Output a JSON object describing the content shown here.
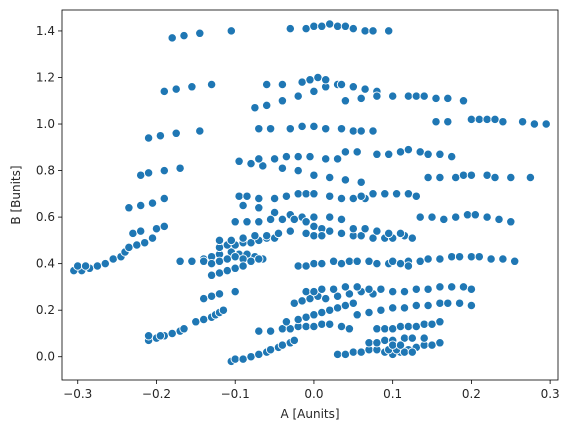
{
  "chart_data": {
    "type": "scatter",
    "xlabel": "A [Aunits]",
    "ylabel": "B [Bunits]",
    "xlim": [
      -0.32,
      0.31
    ],
    "ylim": [
      -0.1,
      1.49
    ],
    "xticks": [
      -0.3,
      -0.2,
      -0.1,
      0.0,
      0.1,
      0.2,
      0.3
    ],
    "xtick_labels": [
      "−0.3",
      "−0.2",
      "−0.1",
      "0.0",
      "0.1",
      "0.2",
      "0.3"
    ],
    "yticks": [
      0.0,
      0.2,
      0.4,
      0.6,
      0.8,
      1.0,
      1.2,
      1.4
    ],
    "ytick_labels": [
      "0.0",
      "0.2",
      "0.4",
      "0.6",
      "0.8",
      "1.0",
      "1.2",
      "1.4"
    ],
    "grid": false,
    "marker_color": "#1f77b4",
    "marker_edge_color": "#ffffff",
    "points": [
      [
        -0.18,
        1.37
      ],
      [
        -0.165,
        1.38
      ],
      [
        -0.145,
        1.39
      ],
      [
        -0.105,
        1.4
      ],
      [
        -0.03,
        1.41
      ],
      [
        -0.01,
        1.41
      ],
      [
        0.0,
        1.42
      ],
      [
        0.01,
        1.42
      ],
      [
        0.02,
        1.43
      ],
      [
        0.03,
        1.42
      ],
      [
        0.04,
        1.42
      ],
      [
        0.05,
        1.41
      ],
      [
        0.065,
        1.4
      ],
      [
        0.075,
        1.4
      ],
      [
        0.095,
        1.4
      ],
      [
        -0.19,
        1.14
      ],
      [
        -0.175,
        1.15
      ],
      [
        -0.155,
        1.16
      ],
      [
        -0.13,
        1.17
      ],
      [
        -0.075,
        1.07
      ],
      [
        -0.06,
        1.08
      ],
      [
        -0.04,
        1.1
      ],
      [
        -0.02,
        1.12
      ],
      [
        0.0,
        1.14
      ],
      [
        0.015,
        1.16
      ],
      [
        0.03,
        1.17
      ],
      [
        -0.06,
        1.17
      ],
      [
        -0.04,
        1.17
      ],
      [
        -0.015,
        1.18
      ],
      [
        -0.005,
        1.19
      ],
      [
        0.005,
        1.2
      ],
      [
        0.015,
        1.19
      ],
      [
        0.035,
        1.17
      ],
      [
        0.05,
        1.16
      ],
      [
        0.065,
        1.15
      ],
      [
        0.08,
        1.14
      ],
      [
        0.04,
        1.1
      ],
      [
        0.06,
        1.11
      ],
      [
        0.08,
        1.12
      ],
      [
        0.1,
        1.12
      ],
      [
        0.12,
        1.12
      ],
      [
        0.13,
        1.12
      ],
      [
        0.14,
        1.12
      ],
      [
        0.155,
        1.11
      ],
      [
        0.17,
        1.11
      ],
      [
        0.19,
        1.1
      ],
      [
        0.155,
        1.01
      ],
      [
        0.17,
        1.01
      ],
      [
        0.2,
        1.02
      ],
      [
        0.21,
        1.02
      ],
      [
        0.22,
        1.02
      ],
      [
        0.23,
        1.02
      ],
      [
        0.24,
        1.01
      ],
      [
        0.265,
        1.01
      ],
      [
        0.28,
        1.0
      ],
      [
        0.295,
        1.0
      ],
      [
        -0.21,
        0.94
      ],
      [
        -0.195,
        0.95
      ],
      [
        -0.175,
        0.96
      ],
      [
        -0.145,
        0.97
      ],
      [
        -0.07,
        0.98
      ],
      [
        -0.055,
        0.98
      ],
      [
        -0.03,
        0.98
      ],
      [
        -0.015,
        0.99
      ],
      [
        0.0,
        0.99
      ],
      [
        0.015,
        0.98
      ],
      [
        0.035,
        0.98
      ],
      [
        0.05,
        0.97
      ],
      [
        0.06,
        0.97
      ],
      [
        0.075,
        0.97
      ],
      [
        -0.22,
        0.78
      ],
      [
        -0.21,
        0.79
      ],
      [
        -0.19,
        0.8
      ],
      [
        -0.17,
        0.81
      ],
      [
        -0.095,
        0.84
      ],
      [
        -0.08,
        0.83
      ],
      [
        -0.065,
        0.82
      ],
      [
        -0.04,
        0.81
      ],
      [
        -0.02,
        0.8
      ],
      [
        0.0,
        0.78
      ],
      [
        0.02,
        0.77
      ],
      [
        0.04,
        0.76
      ],
      [
        0.06,
        0.75
      ],
      [
        -0.07,
        0.85
      ],
      [
        -0.05,
        0.85
      ],
      [
        -0.035,
        0.86
      ],
      [
        -0.02,
        0.86
      ],
      [
        -0.005,
        0.86
      ],
      [
        0.015,
        0.85
      ],
      [
        0.03,
        0.85
      ],
      [
        0.04,
        0.88
      ],
      [
        0.055,
        0.88
      ],
      [
        0.08,
        0.87
      ],
      [
        0.095,
        0.87
      ],
      [
        0.11,
        0.88
      ],
      [
        0.12,
        0.89
      ],
      [
        0.135,
        0.88
      ],
      [
        0.145,
        0.87
      ],
      [
        0.16,
        0.87
      ],
      [
        0.175,
        0.86
      ],
      [
        0.145,
        0.77
      ],
      [
        0.16,
        0.77
      ],
      [
        0.18,
        0.77
      ],
      [
        0.19,
        0.78
      ],
      [
        0.2,
        0.78
      ],
      [
        0.22,
        0.78
      ],
      [
        0.23,
        0.77
      ],
      [
        0.25,
        0.77
      ],
      [
        0.275,
        0.77
      ],
      [
        -0.235,
        0.64
      ],
      [
        -0.22,
        0.65
      ],
      [
        -0.205,
        0.66
      ],
      [
        -0.19,
        0.68
      ],
      [
        -0.095,
        0.69
      ],
      [
        -0.085,
        0.69
      ],
      [
        -0.07,
        0.68
      ],
      [
        -0.05,
        0.68
      ],
      [
        -0.035,
        0.69
      ],
      [
        -0.02,
        0.7
      ],
      [
        -0.01,
        0.7
      ],
      [
        0.0,
        0.7
      ],
      [
        0.02,
        0.69
      ],
      [
        0.035,
        0.68
      ],
      [
        0.05,
        0.68
      ],
      [
        0.065,
        0.68
      ],
      [
        -0.09,
        0.65
      ],
      [
        -0.07,
        0.64
      ],
      [
        -0.05,
        0.62
      ],
      [
        -0.03,
        0.61
      ],
      [
        -0.015,
        0.6
      ],
      [
        0.0,
        0.6
      ],
      [
        0.02,
        0.6
      ],
      [
        0.035,
        0.59
      ],
      [
        0.06,
        0.69
      ],
      [
        0.075,
        0.7
      ],
      [
        0.09,
        0.7
      ],
      [
        0.105,
        0.7
      ],
      [
        0.12,
        0.7
      ],
      [
        0.13,
        0.69
      ],
      [
        0.135,
        0.6
      ],
      [
        0.15,
        0.6
      ],
      [
        0.165,
        0.59
      ],
      [
        0.18,
        0.6
      ],
      [
        0.195,
        0.61
      ],
      [
        0.205,
        0.61
      ],
      [
        0.22,
        0.6
      ],
      [
        0.235,
        0.59
      ],
      [
        0.25,
        0.58
      ],
      [
        -0.295,
        0.37
      ],
      [
        -0.285,
        0.38
      ],
      [
        -0.275,
        0.39
      ],
      [
        -0.265,
        0.4
      ],
      [
        -0.255,
        0.42
      ],
      [
        -0.245,
        0.43
      ],
      [
        -0.24,
        0.45
      ],
      [
        -0.235,
        0.47
      ],
      [
        -0.225,
        0.48
      ],
      [
        -0.215,
        0.49
      ],
      [
        -0.205,
        0.51
      ],
      [
        -0.23,
        0.53
      ],
      [
        -0.22,
        0.54
      ],
      [
        -0.2,
        0.55
      ],
      [
        -0.19,
        0.56
      ],
      [
        -0.305,
        0.37
      ],
      [
        -0.3,
        0.39
      ],
      [
        -0.29,
        0.39
      ],
      [
        -0.17,
        0.41
      ],
      [
        -0.155,
        0.41
      ],
      [
        -0.14,
        0.42
      ],
      [
        -0.13,
        0.43
      ],
      [
        -0.12,
        0.44
      ],
      [
        -0.105,
        0.45
      ],
      [
        -0.095,
        0.44
      ],
      [
        -0.085,
        0.44
      ],
      [
        -0.075,
        0.43
      ],
      [
        -0.065,
        0.42
      ],
      [
        -0.14,
        0.41
      ],
      [
        -0.13,
        0.4
      ],
      [
        -0.12,
        0.41
      ],
      [
        -0.11,
        0.42
      ],
      [
        -0.1,
        0.43
      ],
      [
        -0.09,
        0.42
      ],
      [
        -0.08,
        0.41
      ],
      [
        -0.07,
        0.42
      ],
      [
        -0.13,
        0.35
      ],
      [
        -0.12,
        0.36
      ],
      [
        -0.11,
        0.37
      ],
      [
        -0.1,
        0.38
      ],
      [
        -0.09,
        0.39
      ],
      [
        -0.12,
        0.47
      ],
      [
        -0.11,
        0.48
      ],
      [
        -0.1,
        0.48
      ],
      [
        -0.09,
        0.49
      ],
      [
        -0.08,
        0.49
      ],
      [
        -0.07,
        0.5
      ],
      [
        -0.06,
        0.51
      ],
      [
        -0.05,
        0.51
      ],
      [
        -0.12,
        0.5
      ],
      [
        -0.105,
        0.5
      ],
      [
        -0.09,
        0.51
      ],
      [
        -0.075,
        0.52
      ],
      [
        -0.06,
        0.52
      ],
      [
        -0.045,
        0.53
      ],
      [
        -0.03,
        0.54
      ],
      [
        -0.1,
        0.58
      ],
      [
        -0.085,
        0.58
      ],
      [
        -0.07,
        0.58
      ],
      [
        -0.055,
        0.59
      ],
      [
        -0.04,
        0.59
      ],
      [
        -0.025,
        0.59
      ],
      [
        -0.01,
        0.58
      ],
      [
        0.0,
        0.56
      ],
      [
        0.01,
        0.55
      ],
      [
        0.02,
        0.54
      ],
      [
        0.035,
        0.53
      ],
      [
        0.05,
        0.52
      ],
      [
        0.06,
        0.52
      ],
      [
        0.075,
        0.51
      ],
      [
        0.09,
        0.51
      ],
      [
        0.1,
        0.51
      ],
      [
        0.115,
        0.52
      ],
      [
        0.125,
        0.51
      ],
      [
        -0.01,
        0.53
      ],
      [
        0.0,
        0.52
      ],
      [
        0.01,
        0.52
      ],
      [
        0.05,
        0.55
      ],
      [
        0.065,
        0.55
      ],
      [
        0.08,
        0.54
      ],
      [
        0.095,
        0.53
      ],
      [
        0.11,
        0.53
      ],
      [
        -0.02,
        0.39
      ],
      [
        -0.01,
        0.39
      ],
      [
        0.0,
        0.4
      ],
      [
        0.01,
        0.4
      ],
      [
        0.025,
        0.41
      ],
      [
        0.035,
        0.4
      ],
      [
        0.045,
        0.41
      ],
      [
        0.055,
        0.41
      ],
      [
        0.07,
        0.41
      ],
      [
        0.08,
        0.4
      ],
      [
        0.095,
        0.4
      ],
      [
        0.12,
        0.41
      ],
      [
        0.135,
        0.41
      ],
      [
        0.145,
        0.42
      ],
      [
        0.16,
        0.42
      ],
      [
        0.175,
        0.43
      ],
      [
        0.185,
        0.43
      ],
      [
        0.2,
        0.43
      ],
      [
        0.21,
        0.43
      ],
      [
        0.225,
        0.42
      ],
      [
        0.24,
        0.42
      ],
      [
        0.255,
        0.41
      ],
      [
        0.1,
        0.41
      ],
      [
        0.11,
        0.4
      ],
      [
        0.12,
        0.39
      ],
      [
        -0.14,
        0.25
      ],
      [
        -0.13,
        0.26
      ],
      [
        -0.12,
        0.27
      ],
      [
        -0.1,
        0.28
      ],
      [
        -0.15,
        0.15
      ],
      [
        -0.14,
        0.16
      ],
      [
        -0.13,
        0.17
      ],
      [
        -0.125,
        0.18
      ],
      [
        -0.12,
        0.19
      ],
      [
        -0.115,
        0.2
      ],
      [
        -0.21,
        0.07
      ],
      [
        -0.2,
        0.08
      ],
      [
        -0.19,
        0.09
      ],
      [
        -0.18,
        0.1
      ],
      [
        -0.17,
        0.11
      ],
      [
        -0.165,
        0.12
      ],
      [
        -0.21,
        0.09
      ],
      [
        -0.195,
        0.09
      ],
      [
        -0.18,
        0.1
      ],
      [
        -0.105,
        -0.02
      ],
      [
        -0.1,
        -0.01
      ],
      [
        -0.09,
        -0.01
      ],
      [
        -0.08,
        0.0
      ],
      [
        -0.07,
        0.01
      ],
      [
        -0.06,
        0.02
      ],
      [
        -0.055,
        0.03
      ],
      [
        -0.045,
        0.04
      ],
      [
        -0.04,
        0.05
      ],
      [
        -0.03,
        0.06
      ],
      [
        -0.025,
        0.07
      ],
      [
        -0.07,
        0.11
      ],
      [
        -0.055,
        0.11
      ],
      [
        -0.04,
        0.12
      ],
      [
        -0.03,
        0.12
      ],
      [
        -0.02,
        0.13
      ],
      [
        -0.01,
        0.13
      ],
      [
        0.0,
        0.13
      ],
      [
        0.01,
        0.14
      ],
      [
        0.02,
        0.14
      ],
      [
        0.035,
        0.13
      ],
      [
        0.045,
        0.12
      ],
      [
        -0.035,
        0.15
      ],
      [
        -0.02,
        0.16
      ],
      [
        -0.01,
        0.17
      ],
      [
        0.0,
        0.18
      ],
      [
        0.01,
        0.19
      ],
      [
        0.02,
        0.2
      ],
      [
        0.03,
        0.21
      ],
      [
        0.04,
        0.22
      ],
      [
        0.05,
        0.23
      ],
      [
        -0.025,
        0.23
      ],
      [
        -0.015,
        0.24
      ],
      [
        -0.005,
        0.25
      ],
      [
        0.005,
        0.26
      ],
      [
        0.015,
        0.25
      ],
      [
        0.03,
        0.26
      ],
      [
        0.045,
        0.27
      ],
      [
        0.06,
        0.28
      ],
      [
        0.075,
        0.27
      ],
      [
        -0.01,
        0.28
      ],
      [
        0.0,
        0.28
      ],
      [
        0.01,
        0.29
      ],
      [
        0.025,
        0.29
      ],
      [
        0.04,
        0.3
      ],
      [
        0.055,
        0.3
      ],
      [
        0.07,
        0.29
      ],
      [
        0.085,
        0.29
      ],
      [
        0.1,
        0.28
      ],
      [
        0.115,
        0.28
      ],
      [
        0.13,
        0.29
      ],
      [
        0.145,
        0.29
      ],
      [
        0.16,
        0.3
      ],
      [
        0.175,
        0.3
      ],
      [
        0.19,
        0.3
      ],
      [
        0.2,
        0.29
      ],
      [
        0.055,
        0.18
      ],
      [
        0.07,
        0.19
      ],
      [
        0.085,
        0.2
      ],
      [
        0.1,
        0.21
      ],
      [
        0.115,
        0.21
      ],
      [
        0.13,
        0.22
      ],
      [
        0.145,
        0.22
      ],
      [
        0.16,
        0.23
      ],
      [
        0.17,
        0.23
      ],
      [
        0.185,
        0.23
      ],
      [
        0.2,
        0.22
      ],
      [
        0.08,
        0.12
      ],
      [
        0.09,
        0.12
      ],
      [
        0.1,
        0.12
      ],
      [
        0.11,
        0.13
      ],
      [
        0.12,
        0.13
      ],
      [
        0.13,
        0.13
      ],
      [
        0.14,
        0.14
      ],
      [
        0.15,
        0.14
      ],
      [
        0.16,
        0.15
      ],
      [
        0.03,
        0.01
      ],
      [
        0.04,
        0.01
      ],
      [
        0.05,
        0.02
      ],
      [
        0.06,
        0.02
      ],
      [
        0.07,
        0.03
      ],
      [
        0.08,
        0.03
      ],
      [
        0.09,
        0.02
      ],
      [
        0.1,
        0.01
      ],
      [
        0.11,
        0.02
      ],
      [
        0.12,
        0.03
      ],
      [
        0.13,
        0.04
      ],
      [
        0.14,
        0.05
      ],
      [
        0.15,
        0.05
      ],
      [
        0.16,
        0.06
      ],
      [
        0.07,
        0.06
      ],
      [
        0.08,
        0.06
      ],
      [
        0.09,
        0.07
      ],
      [
        0.1,
        0.07
      ],
      [
        0.115,
        0.08
      ],
      [
        0.125,
        0.08
      ],
      [
        0.14,
        0.08
      ],
      [
        0.095,
        0.03
      ],
      [
        0.105,
        0.03
      ],
      [
        0.115,
        0.02
      ],
      [
        0.125,
        0.02
      ],
      [
        0.1,
        0.05
      ],
      [
        0.11,
        0.05
      ]
    ]
  }
}
